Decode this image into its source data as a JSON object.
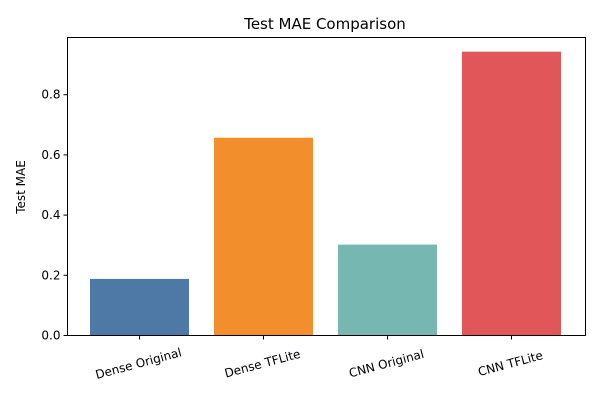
{
  "chart_data": {
    "type": "bar",
    "title": "Test MAE Comparison",
    "xlabel": "",
    "ylabel": "Test MAE",
    "categories": [
      "Dense Original",
      "Dense TFLite",
      "CNN Original",
      "CNN TFLite"
    ],
    "values": [
      0.188,
      0.657,
      0.302,
      0.943
    ],
    "colors": [
      "#4e79a7",
      "#f28e2b",
      "#76b7b2",
      "#e15759"
    ],
    "ylim": [
      0,
      0.99
    ],
    "yticks": [
      "0.0",
      "0.2",
      "0.4",
      "0.6",
      "0.8"
    ],
    "grid": false,
    "legend": "none"
  }
}
